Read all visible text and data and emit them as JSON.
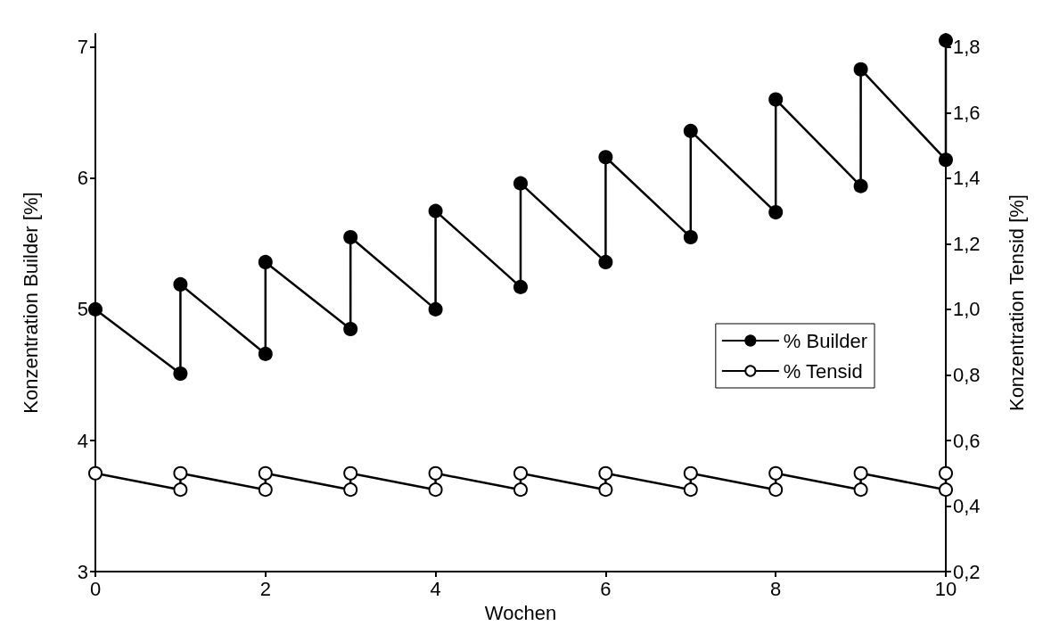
{
  "chart_data": {
    "type": "line",
    "xlabel": "Wochen",
    "ylabel": "Konzentration Builder [%]",
    "y2label": "Konzentration Tensid [%]",
    "x": [
      0,
      1,
      1,
      2,
      2,
      3,
      3,
      4,
      4,
      5,
      5,
      6,
      6,
      7,
      7,
      8,
      8,
      9,
      9,
      10,
      10
    ],
    "series": [
      {
        "name": "% Builder",
        "color": "#000000",
        "marker": "circle",
        "values": [
          5.0,
          4.51,
          5.19,
          4.66,
          5.36,
          4.85,
          5.55,
          5.0,
          5.75,
          5.17,
          5.96,
          5.36,
          6.16,
          5.55,
          6.36,
          5.74,
          6.6,
          5.94,
          6.83,
          6.14,
          7.05
        ]
      },
      {
        "name": "% Tensid",
        "color": "#000000",
        "marker": "circle",
        "axis": "y2",
        "values": [
          0.5,
          0.45,
          0.5,
          0.45,
          0.5,
          0.45,
          0.5,
          0.45,
          0.5,
          0.45,
          0.5,
          0.45,
          0.5,
          0.45,
          0.5,
          0.45,
          0.5,
          0.45,
          0.5,
          0.45,
          0.5
        ]
      }
    ],
    "xlim": [
      0,
      10
    ],
    "xticks": [
      0,
      2,
      4,
      6,
      8,
      10
    ],
    "ylim": [
      3,
      7.1
    ],
    "yticks": [
      3,
      4,
      5,
      6,
      7
    ],
    "y2lim": [
      0.2,
      1.84
    ],
    "y2ticks": [
      {
        "value": 0.2,
        "label": "0,2"
      },
      {
        "value": 0.4,
        "label": "0,4"
      },
      {
        "value": 0.6,
        "label": "0,6"
      },
      {
        "value": 0.8,
        "label": "0,8"
      },
      {
        "value": 1.0,
        "label": "1,0"
      },
      {
        "value": 1.2,
        "label": "1,2"
      },
      {
        "value": 1.4,
        "label": "1,4"
      },
      {
        "value": 1.6,
        "label": "1,6"
      },
      {
        "value": 1.8,
        "label": "1,8"
      }
    ],
    "grid": false,
    "legend": "right",
    "line_style": "solid"
  }
}
